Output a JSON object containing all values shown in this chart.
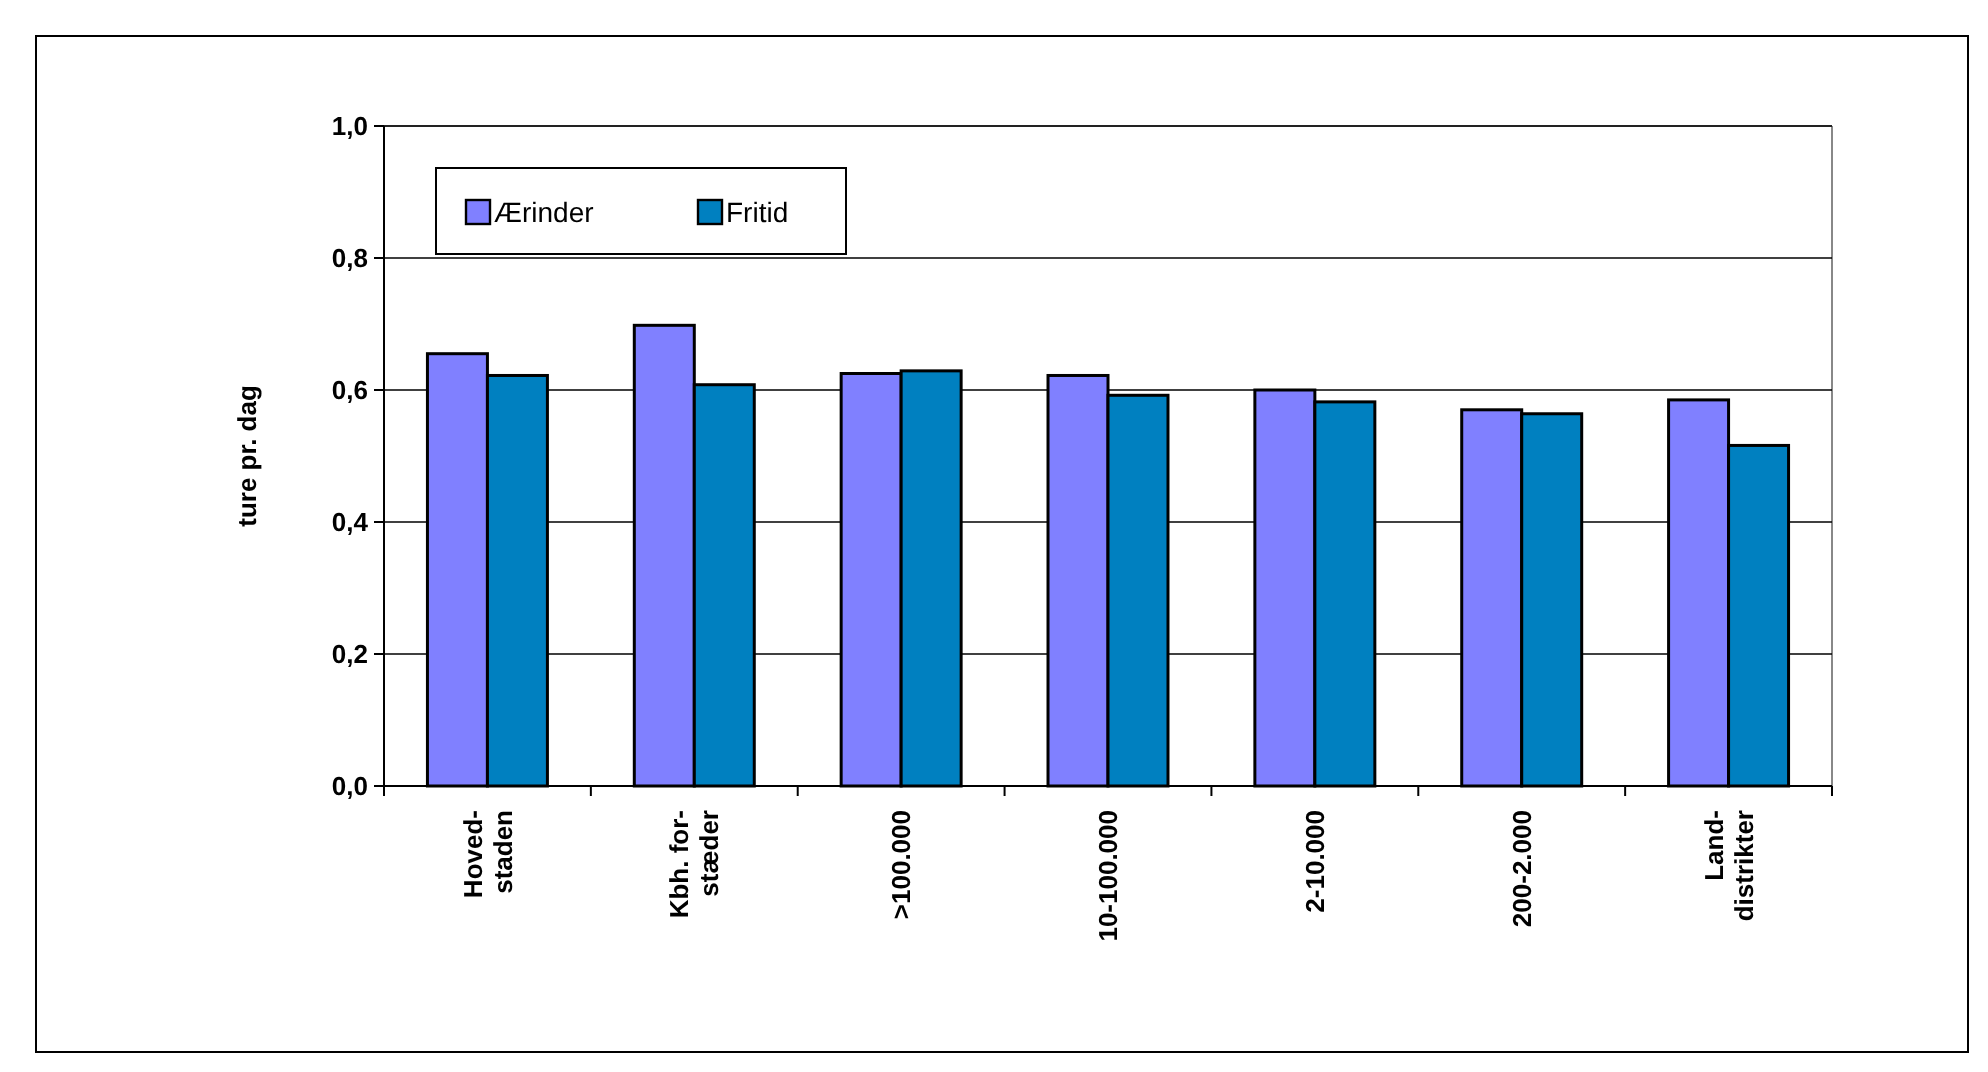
{
  "chart_data": {
    "type": "bar",
    "ylabel": "ture pr. dag",
    "categories": [
      "Hoved-\nstaden",
      "Kbh. for-\nstæder",
      ">100.000",
      "10-100.000",
      "2-10.000",
      "200-2.000",
      "Land-\ndistrikter"
    ],
    "series": [
      {
        "name": "Ærinder",
        "color": "#8080ff",
        "values": [
          0.655,
          0.698,
          0.625,
          0.622,
          0.6,
          0.57,
          0.585
        ]
      },
      {
        "name": "Fritid",
        "color": "#0080c0",
        "values": [
          0.622,
          0.608,
          0.629,
          0.592,
          0.582,
          0.564,
          0.516
        ]
      }
    ],
    "ylim": [
      0,
      1
    ],
    "yticks": [
      {
        "value": 0,
        "label": "0,0"
      },
      {
        "value": 0.2,
        "label": "0,2"
      },
      {
        "value": 0.4,
        "label": "0,4"
      },
      {
        "value": 0.6,
        "label": "0,6"
      },
      {
        "value": 0.8,
        "label": "0,8"
      },
      {
        "value": 1,
        "label": "1,0"
      }
    ],
    "grid": "y",
    "legend": "top left"
  }
}
